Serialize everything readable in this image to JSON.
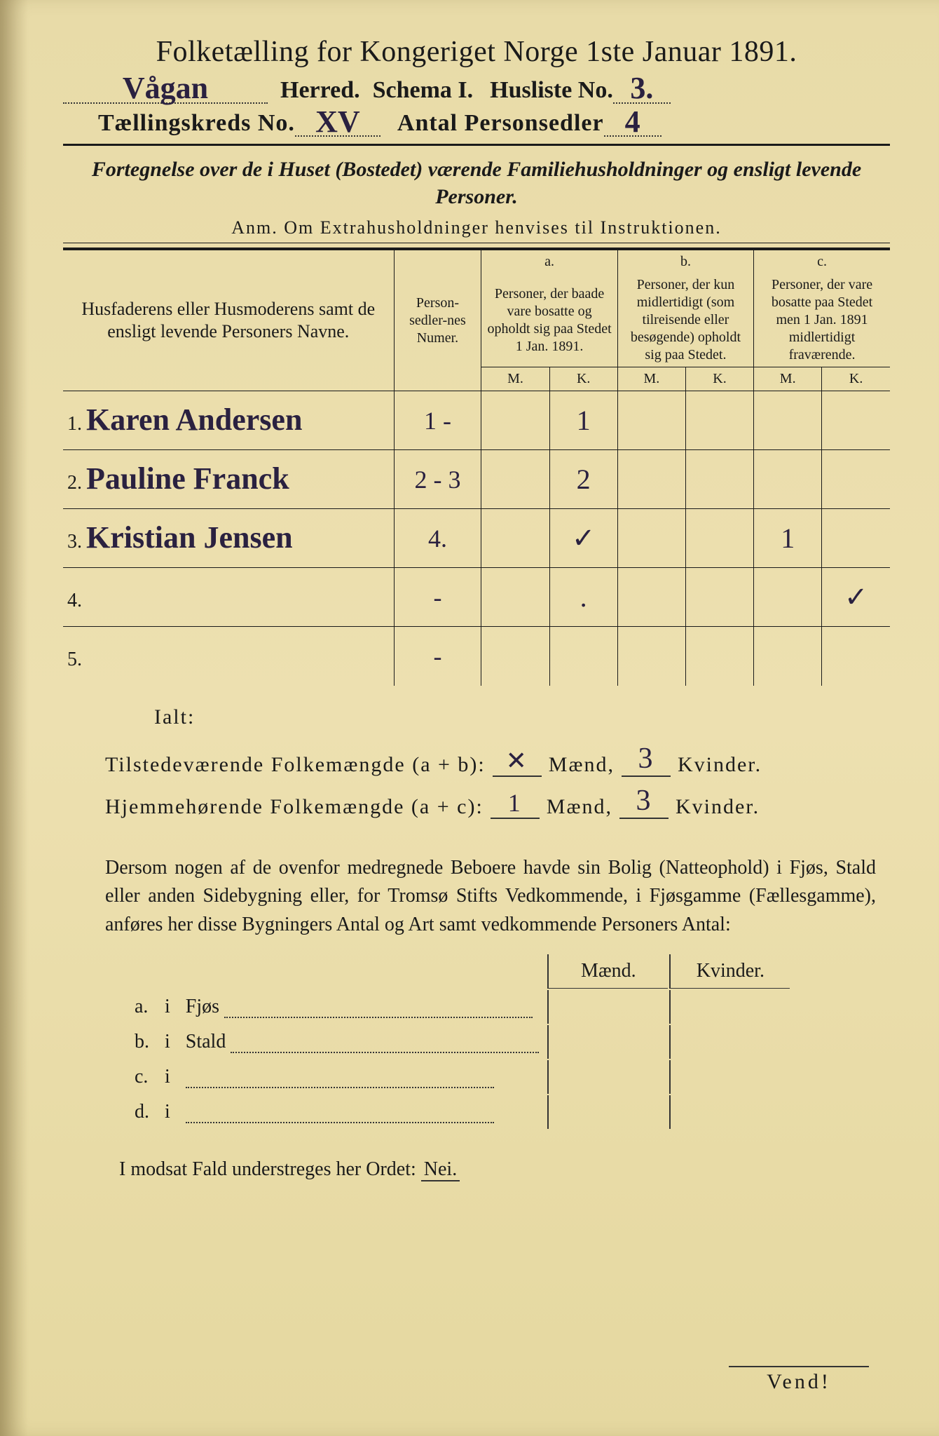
{
  "title": "Folketælling for Kongeriget Norge 1ste Januar 1891.",
  "header": {
    "herred_value": "Vågan",
    "herred_label": "Herred.",
    "schema_label": "Schema I.",
    "husliste_label": "Husliste No.",
    "husliste_value": "3.",
    "kreds_label": "Tællingskreds No.",
    "kreds_value": "XV",
    "antal_label": "Antal Personsedler",
    "antal_value": "4"
  },
  "subtitle": "Fortegnelse over de i Huset (Bostedet) værende Familiehusholdninger og ensligt levende Personer.",
  "anm": "Anm.  Om Extrahusholdninger henvises til Instruktionen.",
  "table": {
    "col_name": "Husfaderens eller Husmoderens samt de ensligt levende Personers Navne.",
    "col_num": "Person-sedler-nes Numer.",
    "col_a_top": "a.",
    "col_a": "Personer, der baade vare bosatte og opholdt sig paa Stedet 1 Jan. 1891.",
    "col_b_top": "b.",
    "col_b": "Personer, der kun midlertidigt (som tilreisende eller besøgende) opholdt sig paa Stedet.",
    "col_c_top": "c.",
    "col_c": "Personer, der vare bosatte paa Stedet men 1 Jan. 1891 midlertidigt fraværende.",
    "mk_m": "M.",
    "mk_k": "K.",
    "rows": [
      {
        "n": "1.",
        "name": "Karen Andersen",
        "num": "1 -",
        "a_m": "",
        "a_k": "1",
        "b_m": "",
        "b_k": "",
        "c_m": "",
        "c_k": ""
      },
      {
        "n": "2.",
        "name": "Pauline Franck",
        "num": "2 - 3",
        "a_m": "",
        "a_k": "2",
        "b_m": "",
        "b_k": "",
        "c_m": "",
        "c_k": ""
      },
      {
        "n": "3.",
        "name": "Kristian Jensen",
        "num": "4.",
        "a_m": "",
        "a_k": "✓",
        "b_m": "",
        "b_k": "",
        "c_m": "1",
        "c_k": ""
      },
      {
        "n": "4.",
        "name": "",
        "num": "-",
        "a_m": "",
        "a_k": ".",
        "b_m": "",
        "b_k": "",
        "c_m": "",
        "c_k": "✓"
      },
      {
        "n": "5.",
        "name": "",
        "num": "-",
        "a_m": "",
        "a_k": "",
        "b_m": "",
        "b_k": "",
        "c_m": "",
        "c_k": ""
      }
    ]
  },
  "ialt_label": "Ialt:",
  "sums": {
    "tilstede_label": "Tilstedeværende Folkemængde (a + b):",
    "hjemme_label": "Hjemmehørende Folkemængde (a + c):",
    "maend_label": "Mænd,",
    "kvinder_label": "Kvinder.",
    "t_m": "✕",
    "t_k": "3",
    "h_m": "1",
    "h_k": "3"
  },
  "para": "Dersom nogen af de ovenfor medregnede Beboere havde sin Bolig (Natteophold) i Fjøs, Stald eller anden Sidebygning eller, for Tromsø Stifts Vedkommende, i Fjøsgamme (Fællesgamme), anføres her disse Bygningers Antal og Art samt vedkommende Personers Antal:",
  "buildings": {
    "maend": "Mænd.",
    "kvinder": "Kvinder.",
    "rows": [
      {
        "l": "a.",
        "i": "i",
        "t": "Fjøs"
      },
      {
        "l": "b.",
        "i": "i",
        "t": "Stald"
      },
      {
        "l": "c.",
        "i": "i",
        "t": ""
      },
      {
        "l": "d.",
        "i": "i",
        "t": ""
      }
    ]
  },
  "nei": "I modsat Fald understreges her Ordet: ",
  "nei_word": "Nei.",
  "vend": "Vend!"
}
